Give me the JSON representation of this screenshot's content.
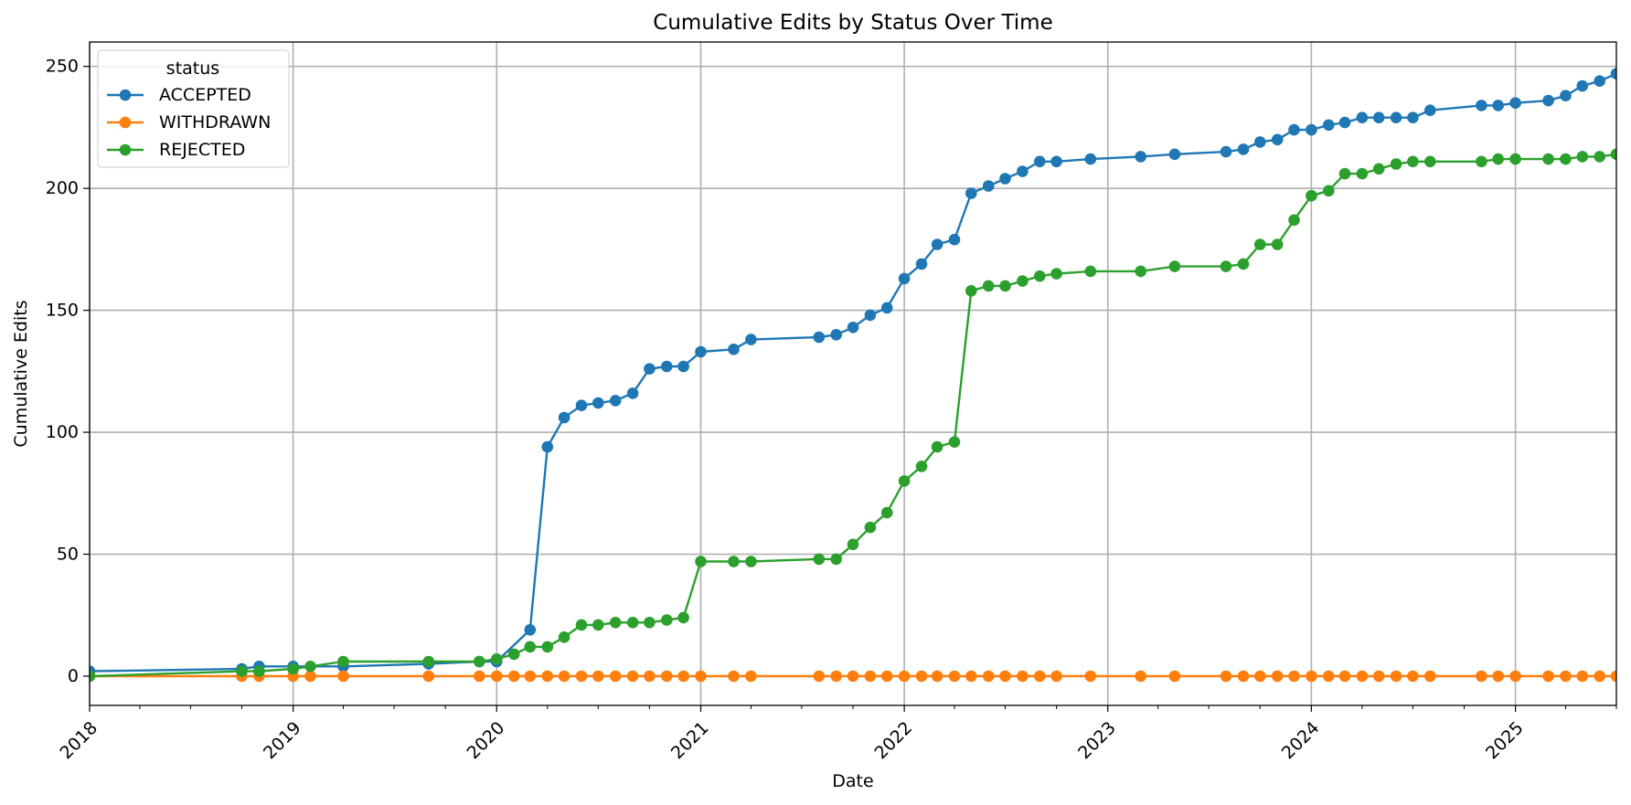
{
  "chart_data": {
    "type": "line",
    "title": "Cumulative Edits by Status Over Time",
    "xlabel": "Date",
    "ylabel": "Cumulative Edits",
    "xlim": [
      "2018-01-01",
      "2025-07-01"
    ],
    "ylim": [
      -12,
      260
    ],
    "x_ticks": [
      "2018",
      "2019",
      "2020",
      "2021",
      "2022",
      "2023",
      "2024",
      "2025"
    ],
    "y_ticks": [
      0,
      50,
      100,
      150,
      200,
      250
    ],
    "grid": true,
    "legend": {
      "title": "status",
      "position": "top-left"
    },
    "series": [
      {
        "name": "ACCEPTED",
        "color": "#1f77b4",
        "points": [
          [
            "2018-01-01",
            2
          ],
          [
            "2018-10-01",
            3
          ],
          [
            "2018-11-01",
            4
          ],
          [
            "2019-01-01",
            4
          ],
          [
            "2019-04-01",
            4
          ],
          [
            "2019-09-01",
            5
          ],
          [
            "2019-12-01",
            6
          ],
          [
            "2020-01-01",
            6
          ],
          [
            "2020-03-01",
            19
          ],
          [
            "2020-04-01",
            94
          ],
          [
            "2020-05-01",
            106
          ],
          [
            "2020-06-01",
            111
          ],
          [
            "2020-07-01",
            112
          ],
          [
            "2020-08-01",
            113
          ],
          [
            "2020-09-01",
            116
          ],
          [
            "2020-10-01",
            126
          ],
          [
            "2020-11-01",
            127
          ],
          [
            "2020-12-01",
            127
          ],
          [
            "2021-01-01",
            133
          ],
          [
            "2021-03-01",
            134
          ],
          [
            "2021-04-01",
            138
          ],
          [
            "2021-08-01",
            139
          ],
          [
            "2021-09-01",
            140
          ],
          [
            "2021-10-01",
            143
          ],
          [
            "2021-11-01",
            148
          ],
          [
            "2021-12-01",
            151
          ],
          [
            "2022-01-01",
            163
          ],
          [
            "2022-02-01",
            169
          ],
          [
            "2022-03-01",
            177
          ],
          [
            "2022-04-01",
            179
          ],
          [
            "2022-05-01",
            198
          ],
          [
            "2022-06-01",
            201
          ],
          [
            "2022-07-01",
            204
          ],
          [
            "2022-08-01",
            207
          ],
          [
            "2022-09-01",
            211
          ],
          [
            "2022-10-01",
            211
          ],
          [
            "2022-12-01",
            212
          ],
          [
            "2023-03-01",
            213
          ],
          [
            "2023-05-01",
            214
          ],
          [
            "2023-08-01",
            215
          ],
          [
            "2023-09-01",
            216
          ],
          [
            "2023-10-01",
            219
          ],
          [
            "2023-11-01",
            220
          ],
          [
            "2023-12-01",
            224
          ],
          [
            "2024-01-01",
            224
          ],
          [
            "2024-02-01",
            226
          ],
          [
            "2024-03-01",
            227
          ],
          [
            "2024-04-01",
            229
          ],
          [
            "2024-05-01",
            229
          ],
          [
            "2024-06-01",
            229
          ],
          [
            "2024-07-01",
            229
          ],
          [
            "2024-08-01",
            232
          ],
          [
            "2024-11-01",
            234
          ],
          [
            "2024-12-01",
            234
          ],
          [
            "2025-01-01",
            235
          ],
          [
            "2025-03-01",
            236
          ],
          [
            "2025-04-01",
            238
          ],
          [
            "2025-05-01",
            242
          ],
          [
            "2025-06-01",
            244
          ],
          [
            "2025-07-01",
            247
          ]
        ]
      },
      {
        "name": "WITHDRAWN",
        "color": "#ff7f0e",
        "points": [
          [
            "2018-01-01",
            0
          ],
          [
            "2018-10-01",
            0
          ],
          [
            "2018-11-01",
            0
          ],
          [
            "2019-01-01",
            0
          ],
          [
            "2019-02-01",
            0
          ],
          [
            "2019-04-01",
            0
          ],
          [
            "2019-09-01",
            0
          ],
          [
            "2019-12-01",
            0
          ],
          [
            "2020-01-01",
            0
          ],
          [
            "2020-02-01",
            0
          ],
          [
            "2020-03-01",
            0
          ],
          [
            "2020-04-01",
            0
          ],
          [
            "2020-05-01",
            0
          ],
          [
            "2020-06-01",
            0
          ],
          [
            "2020-07-01",
            0
          ],
          [
            "2020-08-01",
            0
          ],
          [
            "2020-09-01",
            0
          ],
          [
            "2020-10-01",
            0
          ],
          [
            "2020-11-01",
            0
          ],
          [
            "2020-12-01",
            0
          ],
          [
            "2021-01-01",
            0
          ],
          [
            "2021-03-01",
            0
          ],
          [
            "2021-04-01",
            0
          ],
          [
            "2021-08-01",
            0
          ],
          [
            "2021-09-01",
            0
          ],
          [
            "2021-10-01",
            0
          ],
          [
            "2021-11-01",
            0
          ],
          [
            "2021-12-01",
            0
          ],
          [
            "2022-01-01",
            0
          ],
          [
            "2022-02-01",
            0
          ],
          [
            "2022-03-01",
            0
          ],
          [
            "2022-04-01",
            0
          ],
          [
            "2022-05-01",
            0
          ],
          [
            "2022-06-01",
            0
          ],
          [
            "2022-07-01",
            0
          ],
          [
            "2022-08-01",
            0
          ],
          [
            "2022-09-01",
            0
          ],
          [
            "2022-10-01",
            0
          ],
          [
            "2022-12-01",
            0
          ],
          [
            "2023-03-01",
            0
          ],
          [
            "2023-05-01",
            0
          ],
          [
            "2023-08-01",
            0
          ],
          [
            "2023-09-01",
            0
          ],
          [
            "2023-10-01",
            0
          ],
          [
            "2023-11-01",
            0
          ],
          [
            "2023-12-01",
            0
          ],
          [
            "2024-01-01",
            0
          ],
          [
            "2024-02-01",
            0
          ],
          [
            "2024-03-01",
            0
          ],
          [
            "2024-04-01",
            0
          ],
          [
            "2024-05-01",
            0
          ],
          [
            "2024-06-01",
            0
          ],
          [
            "2024-07-01",
            0
          ],
          [
            "2024-08-01",
            0
          ],
          [
            "2024-11-01",
            0
          ],
          [
            "2024-12-01",
            0
          ],
          [
            "2025-01-01",
            0
          ],
          [
            "2025-03-01",
            0
          ],
          [
            "2025-04-01",
            0
          ],
          [
            "2025-05-01",
            0
          ],
          [
            "2025-06-01",
            0
          ],
          [
            "2025-07-01",
            0
          ]
        ]
      },
      {
        "name": "REJECTED",
        "color": "#2ca02c",
        "points": [
          [
            "2018-01-01",
            0
          ],
          [
            "2018-10-01",
            2
          ],
          [
            "2018-11-01",
            2
          ],
          [
            "2019-01-01",
            3
          ],
          [
            "2019-02-01",
            4
          ],
          [
            "2019-04-01",
            6
          ],
          [
            "2019-09-01",
            6
          ],
          [
            "2019-12-01",
            6
          ],
          [
            "2020-01-01",
            7
          ],
          [
            "2020-02-01",
            9
          ],
          [
            "2020-03-01",
            12
          ],
          [
            "2020-04-01",
            12
          ],
          [
            "2020-05-01",
            16
          ],
          [
            "2020-06-01",
            21
          ],
          [
            "2020-07-01",
            21
          ],
          [
            "2020-08-01",
            22
          ],
          [
            "2020-09-01",
            22
          ],
          [
            "2020-10-01",
            22
          ],
          [
            "2020-11-01",
            23
          ],
          [
            "2020-12-01",
            24
          ],
          [
            "2021-01-01",
            47
          ],
          [
            "2021-03-01",
            47
          ],
          [
            "2021-04-01",
            47
          ],
          [
            "2021-08-01",
            48
          ],
          [
            "2021-09-01",
            48
          ],
          [
            "2021-10-01",
            54
          ],
          [
            "2021-11-01",
            61
          ],
          [
            "2021-12-01",
            67
          ],
          [
            "2022-01-01",
            80
          ],
          [
            "2022-02-01",
            86
          ],
          [
            "2022-03-01",
            94
          ],
          [
            "2022-04-01",
            96
          ],
          [
            "2022-05-01",
            158
          ],
          [
            "2022-06-01",
            160
          ],
          [
            "2022-07-01",
            160
          ],
          [
            "2022-08-01",
            162
          ],
          [
            "2022-09-01",
            164
          ],
          [
            "2022-10-01",
            165
          ],
          [
            "2022-12-01",
            166
          ],
          [
            "2023-03-01",
            166
          ],
          [
            "2023-05-01",
            168
          ],
          [
            "2023-08-01",
            168
          ],
          [
            "2023-09-01",
            169
          ],
          [
            "2023-10-01",
            177
          ],
          [
            "2023-11-01",
            177
          ],
          [
            "2023-12-01",
            187
          ],
          [
            "2024-01-01",
            197
          ],
          [
            "2024-02-01",
            199
          ],
          [
            "2024-03-01",
            206
          ],
          [
            "2024-04-01",
            206
          ],
          [
            "2024-05-01",
            208
          ],
          [
            "2024-06-01",
            210
          ],
          [
            "2024-07-01",
            211
          ],
          [
            "2024-08-01",
            211
          ],
          [
            "2024-11-01",
            211
          ],
          [
            "2024-12-01",
            212
          ],
          [
            "2025-01-01",
            212
          ],
          [
            "2025-03-01",
            212
          ],
          [
            "2025-04-01",
            212
          ],
          [
            "2025-05-01",
            213
          ],
          [
            "2025-06-01",
            213
          ],
          [
            "2025-07-01",
            214
          ]
        ]
      }
    ]
  }
}
